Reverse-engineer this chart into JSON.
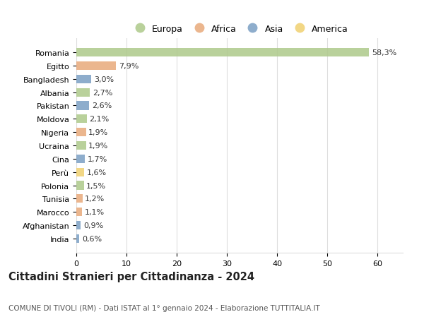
{
  "countries": [
    "Romania",
    "Egitto",
    "Bangladesh",
    "Albania",
    "Pakistan",
    "Moldova",
    "Nigeria",
    "Ucraina",
    "Cina",
    "Perù",
    "Polonia",
    "Tunisia",
    "Marocco",
    "Afghanistan",
    "India"
  ],
  "values": [
    58.3,
    7.9,
    3.0,
    2.7,
    2.6,
    2.1,
    1.9,
    1.9,
    1.7,
    1.6,
    1.5,
    1.2,
    1.1,
    0.9,
    0.6
  ],
  "labels": [
    "58,3%",
    "7,9%",
    "3,0%",
    "2,7%",
    "2,6%",
    "2,1%",
    "1,9%",
    "1,9%",
    "1,7%",
    "1,6%",
    "1,5%",
    "1,2%",
    "1,1%",
    "0,9%",
    "0,6%"
  ],
  "continents": [
    "Europa",
    "Africa",
    "Asia",
    "Europa",
    "Asia",
    "Europa",
    "Africa",
    "Europa",
    "Asia",
    "America",
    "Europa",
    "Africa",
    "Africa",
    "Asia",
    "Asia"
  ],
  "continent_colors": {
    "Europa": "#adc98a",
    "Africa": "#e8a97a",
    "Asia": "#7a9fc4",
    "America": "#f0d070"
  },
  "legend_order": [
    "Europa",
    "Africa",
    "Asia",
    "America"
  ],
  "title": "Cittadini Stranieri per Cittadinanza - 2024",
  "subtitle": "COMUNE DI TIVOLI (RM) - Dati ISTAT al 1° gennaio 2024 - Elaborazione TUTTITALIA.IT",
  "xlim": [
    0,
    65
  ],
  "xticks": [
    0,
    10,
    20,
    30,
    40,
    50,
    60
  ],
  "background_color": "#ffffff",
  "grid_color": "#dddddd",
  "bar_height": 0.65,
  "title_fontsize": 10.5,
  "subtitle_fontsize": 7.5,
  "tick_fontsize": 8,
  "label_fontsize": 8,
  "legend_fontsize": 9
}
